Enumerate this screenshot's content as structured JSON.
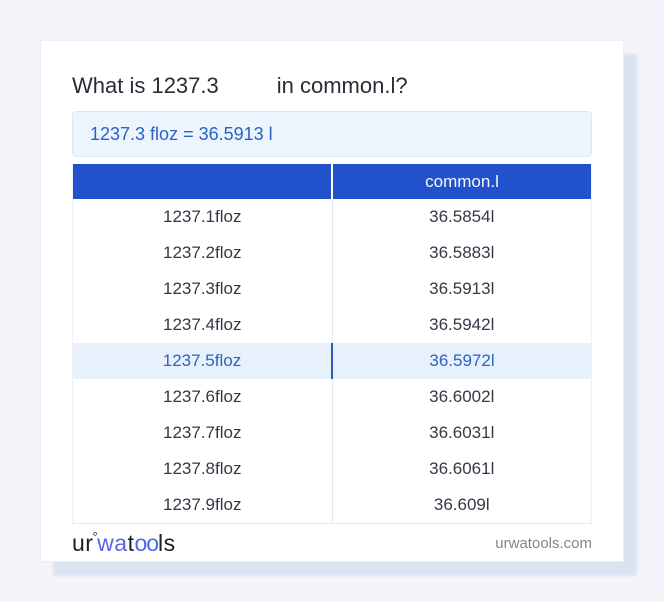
{
  "header": {
    "question_prefix": "What is 1237.3",
    "question_suffix": "in common.l?",
    "answer": "1237.3 floz = 36.5913 l"
  },
  "table": {
    "headers": [
      "",
      "common.l"
    ],
    "rows": [
      {
        "from": "1237.1floz",
        "to": "36.5854l",
        "highlight": false
      },
      {
        "from": "1237.2floz",
        "to": "36.5883l",
        "highlight": false
      },
      {
        "from": "1237.3floz",
        "to": "36.5913l",
        "highlight": false
      },
      {
        "from": "1237.4floz",
        "to": "36.5942l",
        "highlight": false
      },
      {
        "from": "1237.5floz",
        "to": "36.5972l",
        "highlight": true
      },
      {
        "from": "1237.6floz",
        "to": "36.6002l",
        "highlight": false
      },
      {
        "from": "1237.7floz",
        "to": "36.6031l",
        "highlight": false
      },
      {
        "from": "1237.8floz",
        "to": "36.6061l",
        "highlight": false
      },
      {
        "from": "1237.9floz",
        "to": "36.609l",
        "highlight": false
      }
    ]
  },
  "footer": {
    "logo": {
      "p1": "ur",
      "degree": "°",
      "p2": "wa",
      "p3": "t",
      "p4": "oo",
      "p5": "ls"
    },
    "site": "urwatools.com"
  },
  "colors": {
    "accent_blue": "#2251cc",
    "answer_blue": "#2a63c4",
    "highlight_bg": "#e8f1fb",
    "logo_purple": "#5e60e8",
    "logo_blue": "#4a6ce4",
    "page_bg": "#f3f5fa"
  }
}
